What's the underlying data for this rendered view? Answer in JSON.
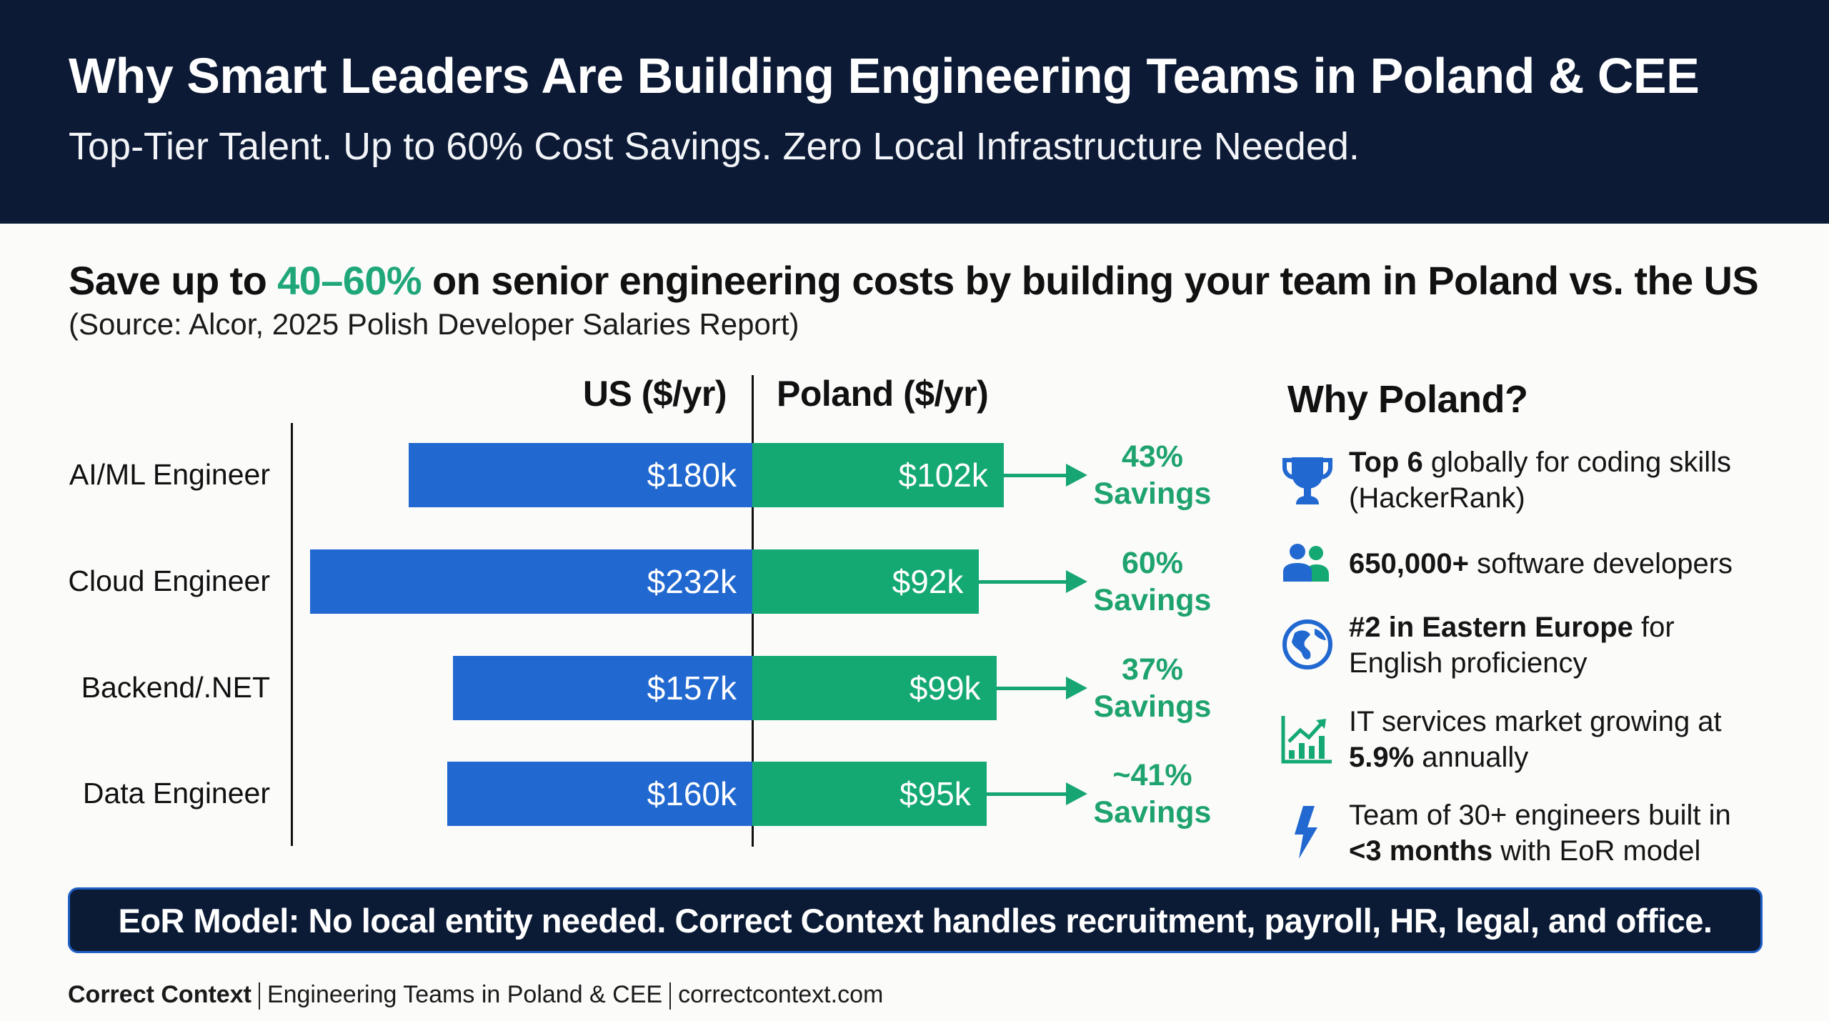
{
  "header": {
    "title": "Why Smart Leaders Are Building Engineering Teams in Poland & CEE",
    "subtitle": "Top-Tier Talent. Up to 60% Cost Savings. Zero Local Infrastructure Needed."
  },
  "headline": {
    "prefix": "Save up to ",
    "highlight": "40–60%",
    "suffix": " on senior engineering costs by building your team in Poland vs. the US",
    "source": "(Source: Alcor, 2025 Polish Developer Salaries Report)"
  },
  "colors": {
    "navy": "#0c1a35",
    "us_blue": "#2168d0",
    "poland_green": "#14a872",
    "savings_green": "#1ea36e",
    "banner_border": "#1f5fc4"
  },
  "chart_data": {
    "type": "bar",
    "orientation": "horizontal-diverging",
    "title": "Save up to 40–60% on senior engineering costs by building your team in Poland vs. the US",
    "subtitle": "(Source: Alcor, 2025 Polish Developer Salaries Report)",
    "xlabel": "",
    "ylabel": "",
    "units": "$k per year",
    "categories": [
      "AI/ML Engineer",
      "Cloud Engineer",
      "Backend/.NET",
      "Data Engineer"
    ],
    "series": [
      {
        "name": "US ($/yr)",
        "values": [
          180,
          232,
          157,
          160
        ],
        "labels": [
          "$180k",
          "$232k",
          "$157k",
          "$160k"
        ],
        "color": "#2168d0",
        "side": "left"
      },
      {
        "name": "Poland ($/yr)",
        "values": [
          102,
          92,
          99,
          95
        ],
        "labels": [
          "$102k",
          "$92k",
          "$99k",
          "$95k"
        ],
        "color": "#14a872",
        "side": "right"
      }
    ],
    "annotations": [
      {
        "category": "AI/ML Engineer",
        "pct": "43%",
        "label": "Savings"
      },
      {
        "category": "Cloud Engineer",
        "pct": "60%",
        "label": "Savings"
      },
      {
        "category": "Backend/.NET",
        "pct": "37%",
        "label": "Savings"
      },
      {
        "category": "Data Engineer",
        "pct": "~41%",
        "label": "Savings"
      }
    ],
    "grid": false,
    "legend": "top (column headers)"
  },
  "why": {
    "title": "Why Poland?",
    "items": [
      {
        "icon": "trophy-icon",
        "bold": "Top 6",
        "rest": " globally for coding skills",
        "line2_bold": "",
        "line2": "(HackerRank)"
      },
      {
        "icon": "users-icon",
        "bold": "650,000+",
        "rest": " software developers",
        "line2_bold": "",
        "line2": ""
      },
      {
        "icon": "globe-icon",
        "bold": "#2 in Eastern Europe",
        "rest": " for",
        "line2_bold": "",
        "line2": "English proficiency"
      },
      {
        "icon": "growth-chart-icon",
        "bold": "",
        "rest": "IT services market growing at",
        "line2_bold": "5.9%",
        "line2": " annually"
      },
      {
        "icon": "lightning-icon",
        "bold": "",
        "rest": "Team of 30+ engineers built in",
        "line2_bold": "<3 months",
        "line2": " with EoR model"
      }
    ]
  },
  "banner": {
    "text": "EoR Model: No local entity needed. Correct Context handles recruitment, payroll, HR, legal, and office."
  },
  "footer": {
    "brand": "Correct Context",
    "tagline": "Engineering Teams in Poland & CEE",
    "website": "correctcontext.com"
  }
}
